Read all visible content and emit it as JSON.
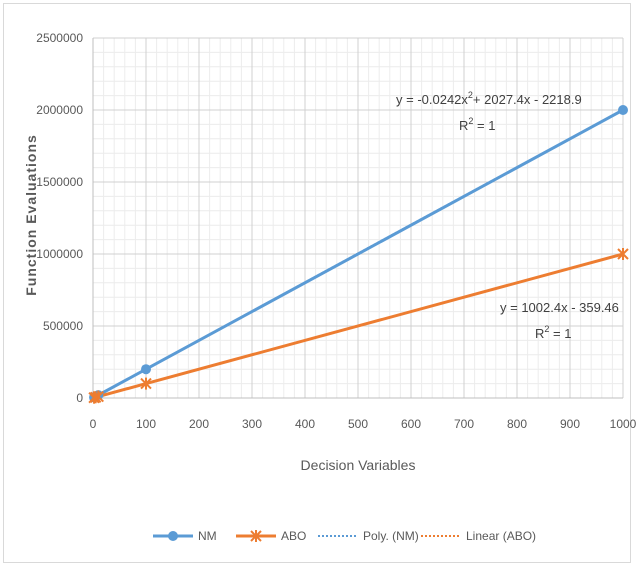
{
  "chart_data": {
    "type": "line",
    "xlabel": "Decision Variables",
    "ylabel": "Function Evaluations",
    "xlim": [
      0,
      1000
    ],
    "ylim": [
      0,
      2500000
    ],
    "x_ticks": [
      "0",
      "100",
      "200",
      "300",
      "400",
      "500",
      "600",
      "700",
      "800",
      "900",
      "1000"
    ],
    "y_ticks": [
      "0",
      "500000",
      "1000000",
      "1500000",
      "2000000",
      "2500000"
    ],
    "grid": true,
    "legend_position": "bottom",
    "series": [
      {
        "name": "NM",
        "color": "#5b9bd5",
        "marker": "circle",
        "x": [
          2,
          5,
          10,
          100,
          1000
        ],
        "y": [
          4000,
          10000,
          20000,
          200000,
          2000000
        ]
      },
      {
        "name": "ABO",
        "color": "#ed7d31",
        "marker": "star",
        "x": [
          2,
          5,
          10,
          100,
          1000
        ],
        "y": [
          2000,
          5000,
          10000,
          100000,
          1000000
        ]
      }
    ],
    "trendlines": [
      {
        "name": "Poly. (NM)",
        "color": "#5b9bd5",
        "equation_prefix": "y = -0.0242x",
        "equation_sup": "2",
        "equation_suffix": "+ 2027.4x - 2218.9",
        "r2_prefix": "R",
        "r2_sup": "2",
        "r2_suffix": " = 1"
      },
      {
        "name": "Linear (ABO)",
        "color": "#ed7d31",
        "equation_prefix": "y = 1002.4x - 359.46",
        "equation_sup": "",
        "equation_suffix": "",
        "r2_prefix": "R",
        "r2_sup": "2",
        "r2_suffix": " = 1"
      }
    ]
  }
}
